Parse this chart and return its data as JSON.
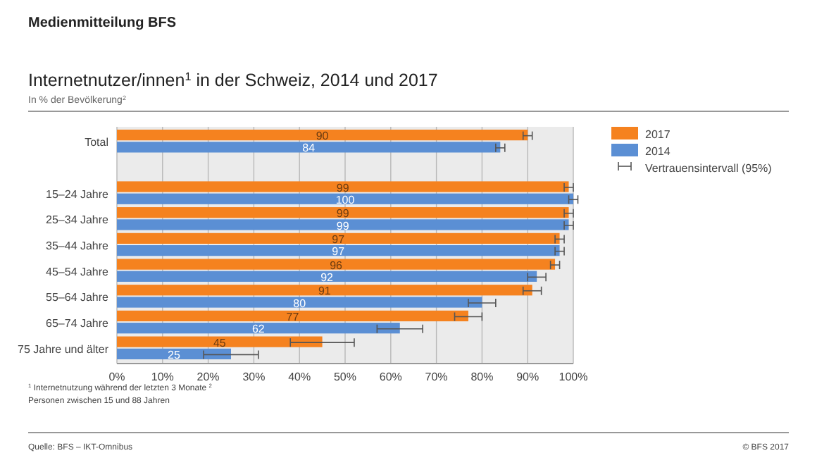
{
  "chart_data": {
    "type": "bar",
    "orientation": "horizontal",
    "title": "Internetnutzer/innen$^{1}$ in der Schweiz, 2014 und 2017",
    "subtitle": "In % der Bevölkerung$^{2}$",
    "categories": [
      "Total",
      null,
      "15–24 Jahre",
      "25–34 Jahre",
      "35–44 Jahre",
      "45–54 Jahre",
      "55–64 Jahre",
      "65–74 Jahre",
      "75 Jahre und älter"
    ],
    "series": [
      {
        "name": "2017",
        "color": "#f5821f",
        "values": [
          90,
          null,
          99,
          99,
          97,
          96,
          91,
          77,
          45
        ],
        "errors": [
          1,
          null,
          1,
          1,
          1,
          1,
          2,
          3,
          7
        ]
      },
      {
        "name": "2014",
        "color": "#5b8fd4",
        "values": [
          84,
          null,
          100,
          99,
          97,
          92,
          80,
          62,
          25
        ],
        "errors": [
          1,
          null,
          1,
          1,
          1,
          2,
          3,
          5,
          6
        ]
      }
    ],
    "xlim": [
      0,
      100
    ],
    "xticks": [
      {
        "value": 0,
        "label": "0%"
      },
      {
        "value": 10,
        "label": "10%"
      },
      {
        "value": 20,
        "label": "20%"
      },
      {
        "value": 30,
        "label": "30%"
      },
      {
        "value": 40,
        "label": "40%"
      },
      {
        "value": 50,
        "label": "50%"
      },
      {
        "value": 60,
        "label": "60%"
      },
      {
        "value": 70,
        "label": "70%"
      },
      {
        "value": 80,
        "label": "80%"
      },
      {
        "value": 90,
        "label": "90%"
      },
      {
        "value": 100,
        "label": "100%"
      }
    ],
    "grid": "x",
    "legend": "right",
    "data_labels": true,
    "annotations": [
      "Medienmitteilung BFS",
      "Vertrauensintervall (95%)",
      "$^{1}$  Internetnutzung während der letzten 3 Monate $^{2}$",
      "Personen zwischen 15 und 88 Jahren",
      "Quelle: BFS – IKT-Omnibus",
      "© BFS 2017"
    ]
  }
}
